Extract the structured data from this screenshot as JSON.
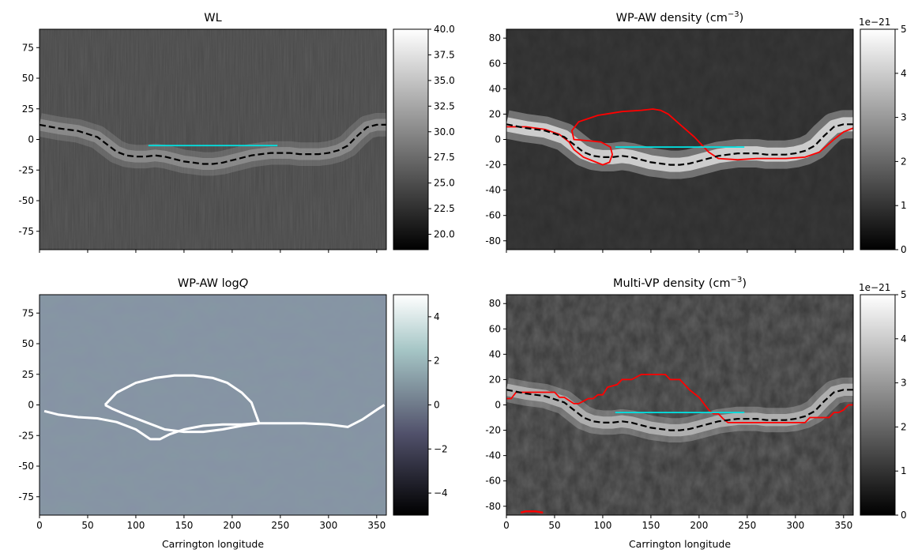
{
  "figure": {
    "xlabel": "Carrington longitude",
    "colors": {
      "boundary": "#000000",
      "cyan_segment": "#00e5e5",
      "open_field": "#ff0000",
      "q_contour": "#ffffff"
    }
  },
  "chart_data": [
    {
      "id": "wl",
      "type": "heatmap",
      "title": "WL",
      "title_parts": [
        "WL"
      ],
      "xlabel": "",
      "xlim": [
        0,
        360
      ],
      "ylim": [
        -90,
        90
      ],
      "xticks": [
        0,
        50,
        100,
        150,
        200,
        250,
        300,
        350
      ],
      "yticks": [
        -75,
        -50,
        -25,
        0,
        25,
        50,
        75
      ],
      "show_xticklabels": false,
      "colormap": "gray",
      "colorbar": {
        "vmin": 18.5,
        "vmax": 40,
        "ticks": [
          20.0,
          22.5,
          25.0,
          27.5,
          30.0,
          32.5,
          35.0,
          37.5,
          40.0
        ],
        "ticklabels": [
          "20.0",
          "22.5",
          "25.0",
          "27.5",
          "30.0",
          "32.5",
          "35.0",
          "37.5",
          "40.0"
        ],
        "offset_label": ""
      },
      "background_level": 24.5,
      "bright_band": {
        "center_lat": -5,
        "width_lat": 12,
        "level": 31
      },
      "dashed_boundary": {
        "lon": [
          0,
          20,
          40,
          60,
          70,
          80,
          90,
          100,
          110,
          120,
          130,
          140,
          150,
          160,
          170,
          180,
          190,
          200,
          210,
          220,
          230,
          240,
          250,
          260,
          270,
          280,
          290,
          300,
          310,
          320,
          330,
          340,
          350,
          360
        ],
        "lat": [
          12,
          9,
          7,
          2,
          -4,
          -10,
          -13,
          -14,
          -14,
          -13,
          -14,
          -16,
          -18,
          -19,
          -20,
          -20,
          -19,
          -17,
          -15,
          -13,
          -12,
          -11,
          -11,
          -11,
          -12,
          -12,
          -12,
          -11,
          -9,
          -5,
          3,
          10,
          12,
          12
        ]
      },
      "cyan_segment": {
        "lon": [
          113,
          247
        ],
        "lat": [
          -5,
          -5
        ]
      },
      "red_contour": null
    },
    {
      "id": "wpaw_density",
      "type": "heatmap",
      "title": "WP-AW density (cm^-3)",
      "title_parts": [
        "WP-AW density (cm",
        "−3",
        ")"
      ],
      "xlabel": "",
      "xlim": [
        0,
        360
      ],
      "ylim": [
        -87,
        87
      ],
      "xticks": [
        0,
        50,
        100,
        150,
        200,
        250,
        300,
        350
      ],
      "yticks": [
        -80,
        -60,
        -40,
        -20,
        0,
        20,
        40,
        60,
        80
      ],
      "show_xticklabels": false,
      "colormap": "gray",
      "colorbar": {
        "vmin": 0,
        "vmax": 5,
        "ticks": [
          0,
          1,
          2,
          3,
          4,
          5
        ],
        "ticklabels": [
          "0",
          "1",
          "2",
          "3",
          "4",
          "5"
        ],
        "offset_label": "1e−21"
      },
      "background_level": 0.9,
      "bright_band": {
        "center_lat": -5,
        "width_lat": 14,
        "level": 4.6
      },
      "dashed_boundary": {
        "lon": [
          0,
          20,
          40,
          60,
          70,
          80,
          90,
          100,
          110,
          120,
          130,
          140,
          150,
          160,
          170,
          180,
          190,
          200,
          210,
          220,
          230,
          240,
          250,
          260,
          270,
          280,
          290,
          300,
          310,
          320,
          330,
          340,
          350,
          360
        ],
        "lat": [
          12,
          9,
          7,
          2,
          -4,
          -10,
          -13,
          -14,
          -14,
          -13,
          -14,
          -16,
          -18,
          -19,
          -20,
          -20,
          -19,
          -17,
          -15,
          -13,
          -12,
          -11,
          -11,
          -11,
          -12,
          -12,
          -12,
          -11,
          -9,
          -5,
          3,
          10,
          12,
          12
        ]
      },
      "cyan_segment": {
        "lon": [
          113,
          247
        ],
        "lat": [
          -6,
          -6
        ]
      },
      "red_contour": {
        "lon": [
          0,
          20,
          40,
          55,
          65,
          70,
          80,
          100,
          107,
          110,
          108,
          98,
          85,
          70,
          68,
          75,
          95,
          120,
          140,
          152,
          160,
          168,
          180,
          195,
          210,
          220,
          240,
          260,
          290,
          310,
          325,
          340,
          350,
          360
        ],
        "lat": [
          10,
          10,
          8,
          4,
          -2,
          -8,
          -14,
          -20,
          -18,
          -12,
          -6,
          -2,
          -1,
          0,
          7,
          14,
          19,
          22,
          23,
          24,
          23,
          20,
          12,
          2,
          -10,
          -15,
          -16,
          -15,
          -15,
          -14,
          -10,
          0,
          6,
          9
        ]
      }
    },
    {
      "id": "wpaw_logq",
      "type": "heatmap",
      "title": "WP-AW logQ",
      "title_parts": [
        "WP-AW log",
        "Q"
      ],
      "xlabel": "Carrington longitude",
      "xlim": [
        0,
        360
      ],
      "ylim": [
        -90,
        90
      ],
      "xticks": [
        0,
        50,
        100,
        150,
        200,
        250,
        300,
        350
      ],
      "yticks": [
        -75,
        -50,
        -25,
        0,
        25,
        50,
        75
      ],
      "show_xticklabels": true,
      "colormap": "bone",
      "colorbar": {
        "vmin": -5,
        "vmax": 5,
        "ticks": [
          -4,
          -2,
          0,
          2,
          4
        ],
        "ticklabels": [
          "−4",
          "−2",
          "0",
          "2",
          "4"
        ],
        "offset_label": ""
      },
      "background_level": 1.0,
      "bright_band": null,
      "dashed_boundary": null,
      "cyan_segment": null,
      "red_contour": null,
      "white_contour": {
        "lon": [
          5,
          20,
          40,
          60,
          80,
          100,
          115,
          125,
          135,
          150,
          170,
          190,
          210,
          225,
          240,
          255,
          275,
          300,
          320,
          335,
          350,
          358
        ],
        "lat": [
          -5,
          -8,
          -10,
          -11,
          -14,
          -20,
          -28,
          -28,
          -24,
          -20,
          -17,
          -16,
          -16,
          -15,
          -15,
          -15,
          -15,
          -16,
          -18,
          -12,
          -4,
          0
        ]
      },
      "white_loop": {
        "lon": [
          68,
          80,
          100,
          120,
          140,
          160,
          180,
          195,
          210,
          220,
          228,
          220,
          210,
          190,
          170,
          150,
          130,
          110,
          90,
          75,
          68
        ],
        "lat": [
          0,
          10,
          18,
          22,
          24,
          24,
          22,
          18,
          10,
          2,
          -15,
          -16,
          -17,
          -20,
          -22,
          -22,
          -20,
          -14,
          -8,
          -3,
          0
        ]
      }
    },
    {
      "id": "multivp_density",
      "type": "heatmap",
      "title": "Multi-VP density (cm^-3)",
      "title_parts": [
        "Multi-VP density (cm",
        "−3",
        ")"
      ],
      "xlabel": "Carrington longitude",
      "xlim": [
        0,
        360
      ],
      "ylim": [
        -87,
        87
      ],
      "xticks": [
        0,
        50,
        100,
        150,
        200,
        250,
        300,
        350
      ],
      "yticks": [
        -80,
        -60,
        -40,
        -20,
        0,
        20,
        40,
        60,
        80
      ],
      "show_xticklabels": true,
      "colormap": "gray",
      "colorbar": {
        "vmin": 0,
        "vmax": 5,
        "ticks": [
          0,
          1,
          2,
          3,
          4,
          5
        ],
        "ticklabels": [
          "0",
          "1",
          "2",
          "3",
          "4",
          "5"
        ],
        "offset_label": "1e−21"
      },
      "background_level": 1.1,
      "bright_band": {
        "center_lat": 0,
        "width_lat": 12,
        "level": 3.8
      },
      "dashed_boundary": {
        "lon": [
          0,
          20,
          40,
          60,
          70,
          80,
          90,
          100,
          110,
          120,
          130,
          140,
          150,
          160,
          170,
          180,
          190,
          200,
          210,
          220,
          230,
          240,
          250,
          260,
          270,
          280,
          290,
          300,
          310,
          320,
          330,
          340,
          350,
          360
        ],
        "lat": [
          12,
          9,
          7,
          2,
          -4,
          -10,
          -13,
          -14,
          -14,
          -13,
          -14,
          -16,
          -18,
          -19,
          -20,
          -20,
          -19,
          -17,
          -15,
          -13,
          -12,
          -11,
          -11,
          -11,
          -12,
          -12,
          -12,
          -11,
          -9,
          -5,
          3,
          10,
          12,
          12
        ]
      },
      "cyan_segment": {
        "lon": [
          113,
          247
        ],
        "lat": [
          -6,
          -6
        ]
      },
      "red_contour": {
        "lon": [
          0,
          5,
          10,
          30,
          50,
          55,
          60,
          70,
          75,
          85,
          90,
          95,
          100,
          105,
          115,
          120,
          130,
          140,
          145,
          165,
          170,
          180,
          185,
          190,
          200,
          210,
          215,
          220,
          225,
          230,
          310,
          315,
          320,
          335,
          340,
          345,
          350,
          355,
          360
        ],
        "lat": [
          5,
          5,
          10,
          10,
          10,
          6,
          6,
          1,
          1,
          5,
          5,
          8,
          8,
          14,
          16,
          20,
          20,
          24,
          24,
          24,
          20,
          20,
          16,
          12,
          6,
          -4,
          -7,
          -7,
          -11,
          -14,
          -14,
          -10,
          -10,
          -10,
          -6,
          -6,
          -4,
          0,
          0
        ]
      },
      "red_artifact": {
        "lon": [
          15,
          20,
          30,
          38
        ],
        "lat": [
          -85,
          -84,
          -84,
          -85
        ]
      }
    }
  ]
}
